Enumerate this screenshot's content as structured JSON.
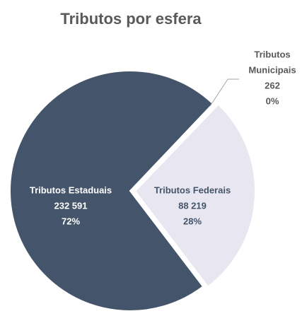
{
  "chart_data": {
    "type": "pie",
    "title": "Tributos por esfera",
    "categories": [
      "Tributos Municipais",
      "Tributos Federais",
      "Tributos Estaduais"
    ],
    "values": [
      262,
      88219,
      232591
    ],
    "value_labels": [
      "262",
      "88 219",
      "232 591"
    ],
    "percent_labels": [
      "0%",
      "28%",
      "72%"
    ],
    "colors": [
      "#c9c9d6",
      "#e8e7f1",
      "#44546a"
    ]
  }
}
